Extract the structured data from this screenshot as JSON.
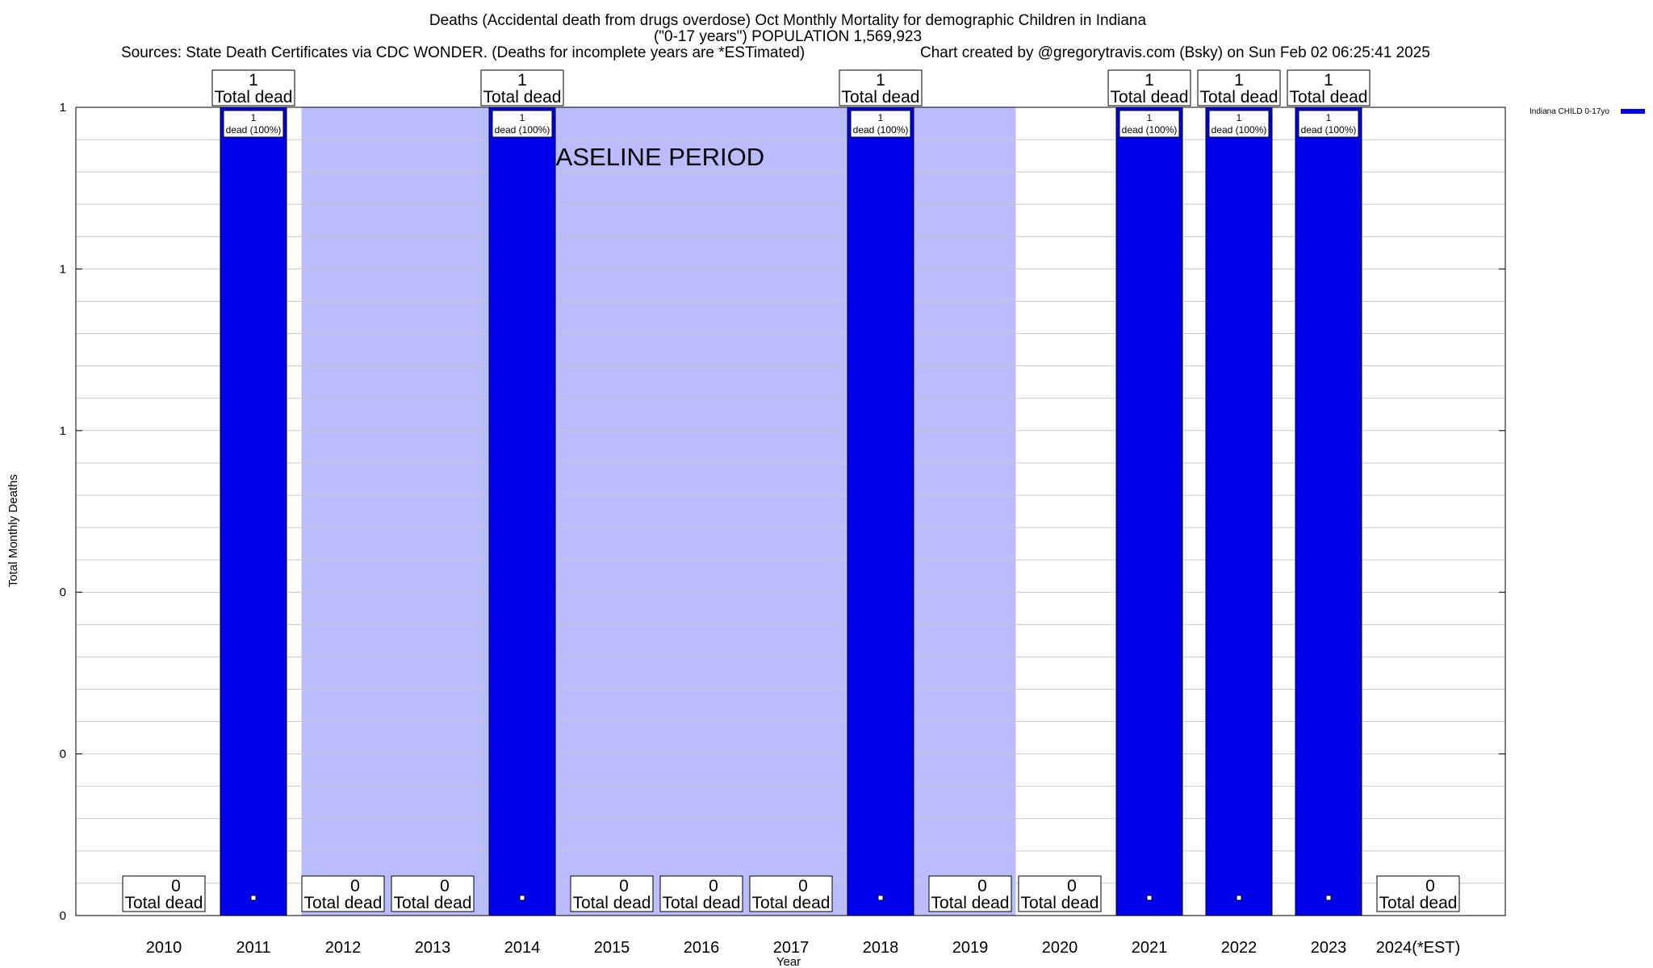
{
  "title": {
    "line1": "Deaths (Accidental death from drugs overdose) Oct Monthly Mortality for demographic Children in Indiana",
    "line2": "(\"0-17 years\") POPULATION 1,569,923",
    "line3_left": "Sources: State Death Certificates via CDC WONDER. (Deaths for incomplete years are *ESTimated)",
    "line3_right": "Chart created by @gregorytravis.com (Bsky) on Sun Feb 02 06:25:41 2025"
  },
  "chart_data": {
    "type": "bar",
    "categories": [
      "2010",
      "2011",
      "2012",
      "2013",
      "2014",
      "2015",
      "2016",
      "2017",
      "2018",
      "2019",
      "2020",
      "2021",
      "2022",
      "2023",
      "2024(*EST)"
    ],
    "series": [
      {
        "name": "Indiana CHILD 0-17yo",
        "color": "#0000ee",
        "values": [
          0,
          1,
          0,
          0,
          1,
          0,
          0,
          0,
          1,
          0,
          0,
          1,
          1,
          1,
          0
        ]
      }
    ],
    "xlabel": "Year",
    "ylabel": "Total Monthly Deaths",
    "ylim": [
      0,
      1
    ],
    "y_tick_labels": [
      "0",
      "0",
      "0",
      "1",
      "1",
      "1"
    ],
    "grid": true,
    "legend_position": "top-right",
    "total_label_text": "Total dead",
    "inbar_label_text": "dead (100%)",
    "baseline_period": {
      "label": "BASELINE PERIOD",
      "from_category": "2012",
      "to_category": "2019",
      "color": "#bbbbff"
    }
  }
}
